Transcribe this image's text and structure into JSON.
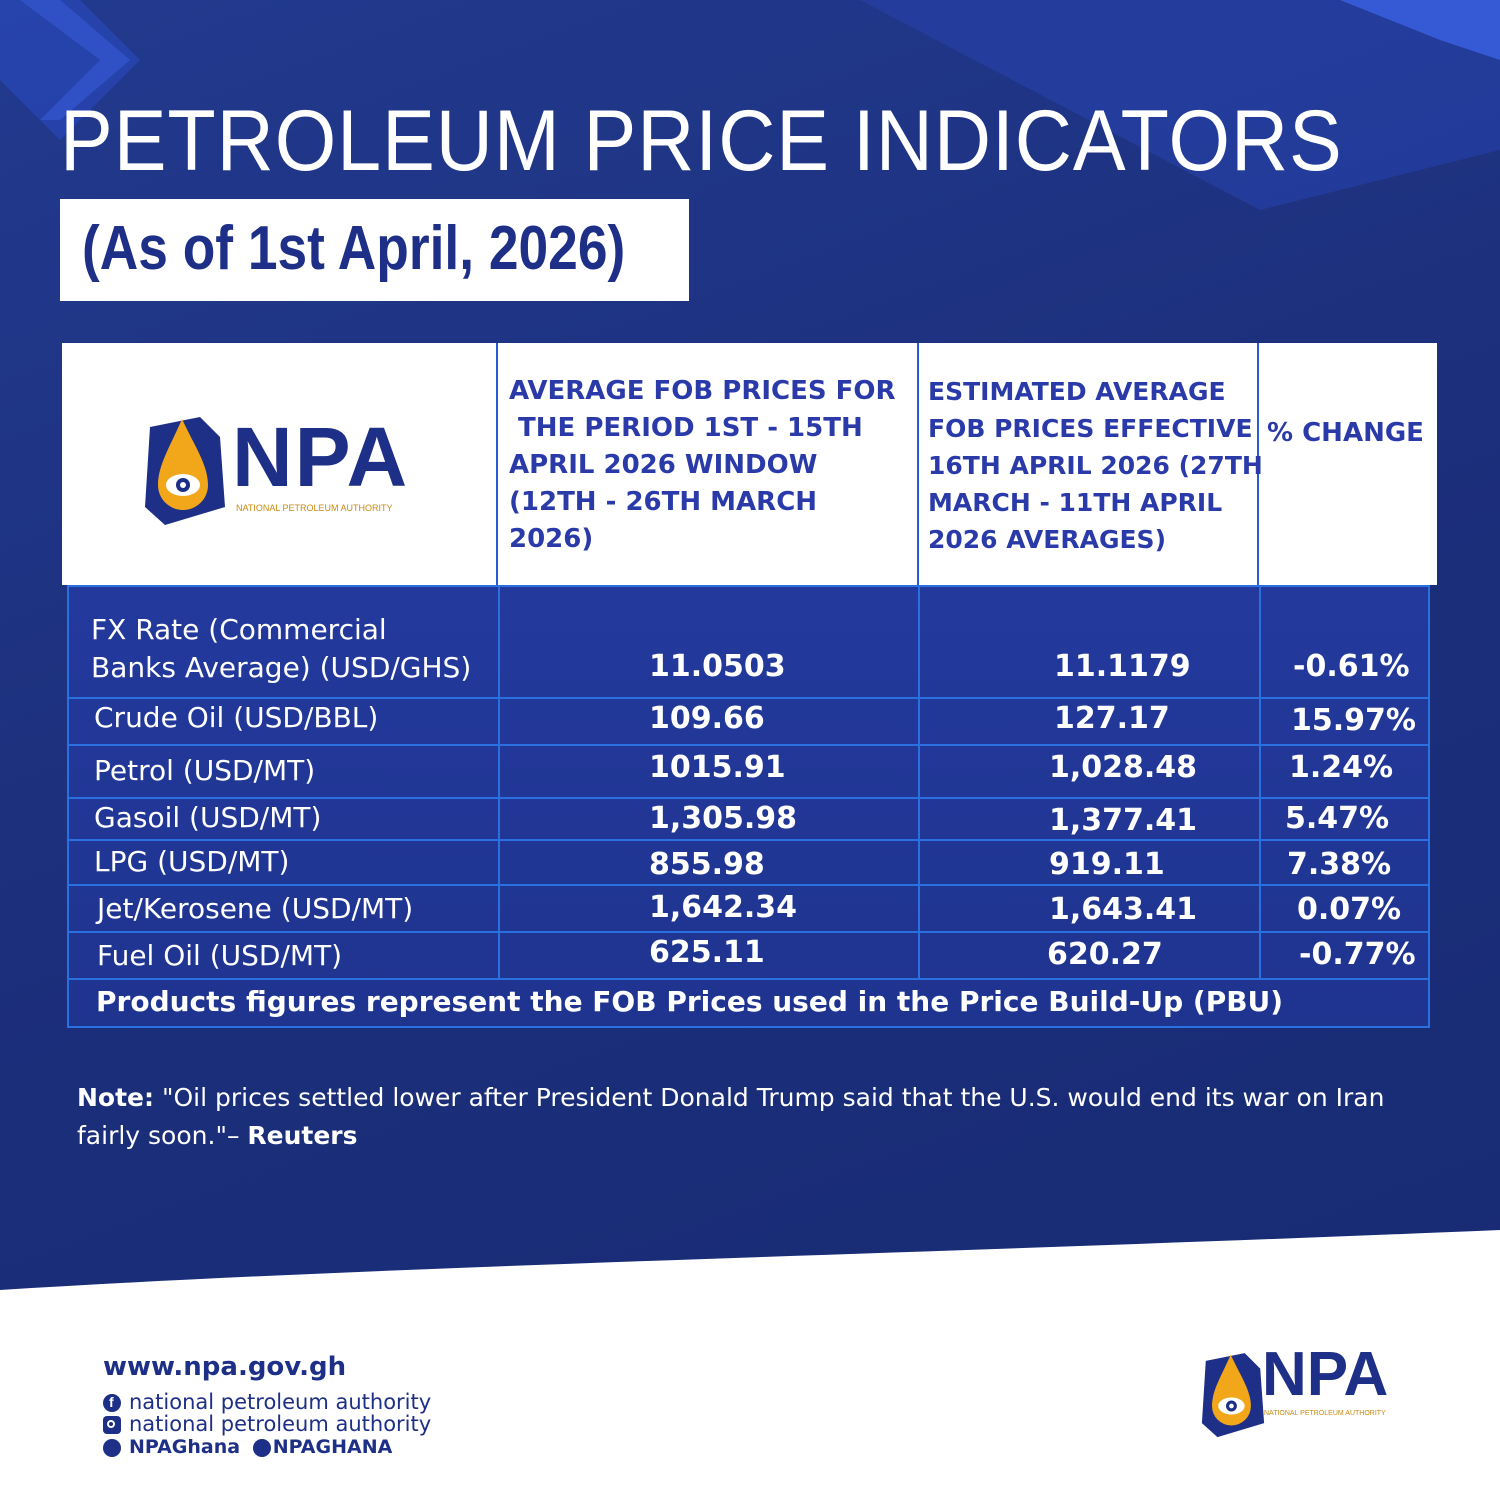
{
  "title": "PETROLEUM PRICE INDICATORS",
  "subtitle": "(As of 1st April, 2026)",
  "brand": {
    "logo_letters": "NPA",
    "logo_tagline": "NATIONAL PETROLEUM AUTHORITY",
    "colors": {
      "navy": "#1d2f86",
      "blue": "#2a3aa8",
      "gold": "#f2a71b"
    }
  },
  "table": {
    "headers": [
      "AVERAGE FOB PRICES FOR\n THE PERIOD 1ST - 15TH\nAPRIL 2026 WINDOW\n(12TH - 26TH MARCH\n2026)",
      "ESTIMATED AVERAGE\nFOB PRICES EFFECTIVE\n16TH APRIL 2026 (27TH\nMARCH - 11TH APRIL\n2026 AVERAGES)",
      "% CHANGE"
    ],
    "rows": [
      {
        "label": "FX Rate (Commercial\nBanks Average) (USD/GHS)",
        "avg": "11.0503",
        "est": "11.1179",
        "change": "-0.61%"
      },
      {
        "label": "Crude Oil (USD/BBL)",
        "avg": "109.66",
        "est": "127.17",
        "change": "15.97%"
      },
      {
        "label": "Petrol (USD/MT)",
        "avg": "1015.91",
        "est": "1,028.48",
        "change": "1.24%"
      },
      {
        "label": "Gasoil (USD/MT)",
        "avg": "1,305.98",
        "est": "1,377.41",
        "change": "5.47%"
      },
      {
        "label": "LPG (USD/MT)",
        "avg": "855.98",
        "est": "919.11",
        "change": "7.38%"
      },
      {
        "label": "Jet/Kerosene (USD/MT)",
        "avg": "1,642.34",
        "est": "1,643.41",
        "change": "0.07%"
      },
      {
        "label": "Fuel Oil (USD/MT)",
        "avg": "625.11",
        "est": "620.27",
        "change": "-0.77%"
      }
    ],
    "footnote": "Products figures represent the FOB Prices used in the Price Build-Up (PBU)"
  },
  "note": {
    "label": "Note:",
    "text": " \"Oil prices settled lower after President Donald Trump said that the U.S. would end its war on Iran fairly soon.\"– ",
    "source": "Reuters"
  },
  "contact": {
    "website": "www.npa.gov.gh",
    "facebook": "national petroleum authority",
    "instagram": "national petroleum authority",
    "twitter": "NPAGhana",
    "tiktok": "NPAGHANA",
    "icons": [
      "facebook-icon",
      "instagram-icon",
      "twitter-icon",
      "tiktok-icon"
    ]
  }
}
